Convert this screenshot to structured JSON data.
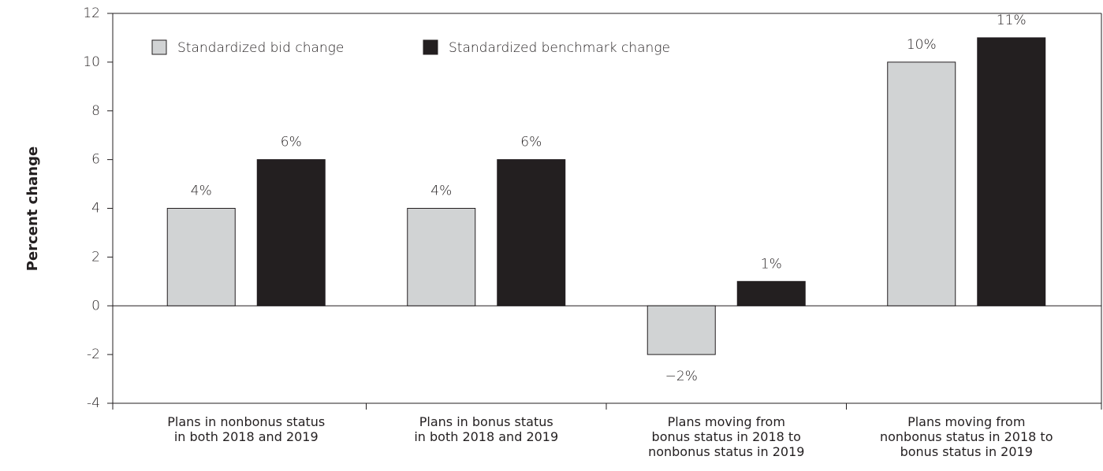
{
  "chart_data": {
    "type": "bar",
    "y_label": "Percent change",
    "categories": [
      "Plans in nonbonus status\nin both 2018 and 2019",
      "Plans in bonus status\nin both 2018 and 2019",
      "Plans moving from\nbonus status in 2018 to\nnonbonus status in 2019",
      "Plans moving from\nnonbonus status in 2018 to\nbonus status in 2019"
    ],
    "series": [
      {
        "name": "Standardized bid change",
        "color": "#d1d3d4",
        "values": [
          4,
          4,
          -2,
          10
        ],
        "value_labels": [
          "4%",
          "4%",
          "−2%",
          "10%"
        ]
      },
      {
        "name": "Standardized benchmark change",
        "color": "#231f20",
        "values": [
          6,
          6,
          1,
          11
        ],
        "value_labels": [
          "6%",
          "6%",
          "1%",
          "11%"
        ]
      }
    ],
    "ylim": [
      -4,
      12
    ],
    "yticks": [
      -4,
      -2,
      0,
      2,
      4,
      6,
      8,
      10,
      12
    ],
    "legend": "upper left"
  }
}
